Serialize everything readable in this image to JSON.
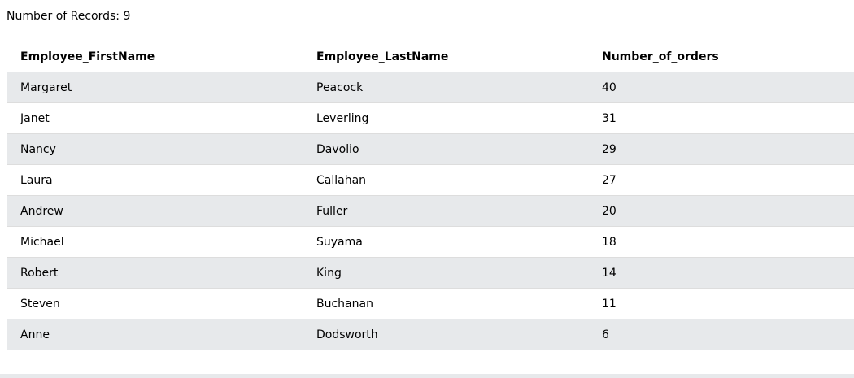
{
  "records": {
    "text": "Number of Records: 9"
  },
  "table": {
    "headers": [
      "Employee_FirstName",
      "Employee_LastName",
      "Number_of_orders"
    ],
    "rows": [
      [
        "Margaret",
        "Peacock",
        "40"
      ],
      [
        "Janet",
        "Leverling",
        "31"
      ],
      [
        "Nancy",
        "Davolio",
        "29"
      ],
      [
        "Laura",
        "Callahan",
        "27"
      ],
      [
        "Andrew",
        "Fuller",
        "20"
      ],
      [
        "Michael",
        "Suyama",
        "18"
      ],
      [
        "Robert",
        "King",
        "14"
      ],
      [
        "Steven",
        "Buchanan",
        "11"
      ],
      [
        "Anne",
        "Dodsworth",
        "6"
      ]
    ]
  },
  "colors": {
    "stripe_row": "#e7e9eb",
    "plain_row": "#ffffff",
    "border": "#dddddd"
  }
}
